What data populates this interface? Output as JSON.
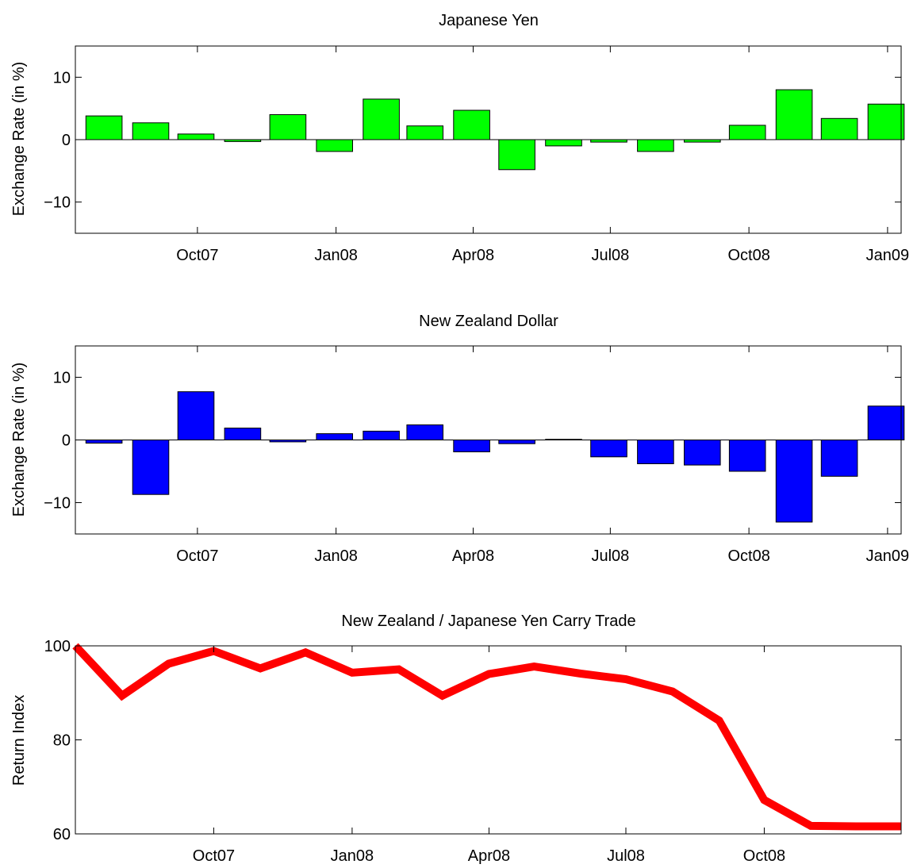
{
  "chart_data": [
    {
      "type": "bar",
      "title": "Japanese Yen",
      "ylabel": "Exchange Rate (in %)",
      "xlabel": "",
      "ylim": [
        -15,
        15
      ],
      "yticks": [
        -10,
        0,
        10
      ],
      "color": "#00ff00",
      "x": [
        "2007-07-31",
        "2007-08-31",
        "2007-09-30",
        "2007-10-31",
        "2007-11-30",
        "2007-12-31",
        "2008-01-31",
        "2008-02-29",
        "2008-03-31",
        "2008-04-30",
        "2008-05-31",
        "2008-06-30",
        "2008-07-31",
        "2008-08-31",
        "2008-09-30",
        "2008-10-31",
        "2008-11-30",
        "2008-12-31"
      ],
      "values": [
        3.8,
        2.7,
        0.9,
        -0.3,
        4.0,
        -1.9,
        6.5,
        2.2,
        4.7,
        -4.8,
        -1.0,
        -0.4,
        -1.9,
        -0.4,
        2.3,
        8.0,
        3.4,
        5.7
      ],
      "xtick_labels": [
        "Oct07",
        "Jan08",
        "Apr08",
        "Jul08",
        "Oct08",
        "Jan09"
      ],
      "grid": false,
      "legend": "none"
    },
    {
      "type": "bar",
      "title": "New Zealand Dollar",
      "ylabel": "Exchange Rate (in %)",
      "xlabel": "",
      "ylim": [
        -15,
        15
      ],
      "yticks": [
        -10,
        0,
        10
      ],
      "color": "#0000ff",
      "x": [
        "2007-07-31",
        "2007-08-31",
        "2007-09-30",
        "2007-10-31",
        "2007-11-30",
        "2007-12-31",
        "2008-01-31",
        "2008-02-29",
        "2008-03-31",
        "2008-04-30",
        "2008-05-31",
        "2008-06-30",
        "2008-07-31",
        "2008-08-31",
        "2008-09-30",
        "2008-10-31",
        "2008-11-30",
        "2008-12-31"
      ],
      "values": [
        -0.5,
        -8.7,
        7.7,
        1.9,
        -0.3,
        1.0,
        1.4,
        2.4,
        -1.9,
        -0.6,
        0.1,
        -2.7,
        -3.8,
        -4.0,
        -5.0,
        -13.1,
        -5.8,
        5.4
      ],
      "xtick_labels": [
        "Oct07",
        "Jan08",
        "Apr08",
        "Jul08",
        "Oct08",
        "Jan09"
      ],
      "grid": false,
      "legend": "none"
    },
    {
      "type": "line",
      "title": "New Zealand / Japanese Yen Carry Trade",
      "ylabel": "Return Index",
      "xlabel": "",
      "ylim": [
        60,
        100
      ],
      "yticks": [
        60,
        80,
        100
      ],
      "color": "#ff0000",
      "x": [
        "2007-07-01",
        "2007-08-01",
        "2007-09-01",
        "2007-10-01",
        "2007-11-01",
        "2007-12-01",
        "2008-01-01",
        "2008-02-01",
        "2008-03-01",
        "2008-04-01",
        "2008-05-01",
        "2008-06-01",
        "2008-07-01",
        "2008-08-01",
        "2008-09-01",
        "2008-10-01",
        "2008-11-01",
        "2008-12-01",
        "2008-12-31"
      ],
      "values": [
        100,
        89.4,
        96.2,
        98.9,
        95.2,
        98.6,
        94.3,
        95.0,
        89.4,
        94.0,
        95.6,
        94.1,
        92.9,
        90.3,
        84.1,
        67.2,
        61.7,
        61.6,
        61.6
      ],
      "xtick_labels": [
        "Oct07",
        "Jan08",
        "Apr08",
        "Jul08",
        "Oct08"
      ],
      "grid": false,
      "legend": "none"
    }
  ]
}
